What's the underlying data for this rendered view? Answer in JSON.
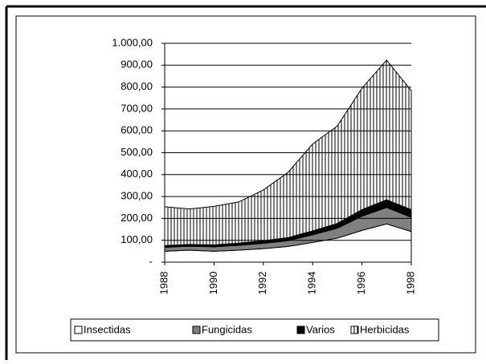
{
  "chart_data": {
    "type": "stacked_area",
    "x": [
      1988,
      1989,
      1990,
      1991,
      1992,
      1993,
      1994,
      1995,
      1996,
      1997,
      1998
    ],
    "xlim": [
      1988,
      1998
    ],
    "xticks": [
      1988,
      1990,
      1992,
      1994,
      1996,
      1998
    ],
    "ylim": [
      0,
      1000
    ],
    "yticks": [
      {
        "value": 0,
        "label": "-"
      },
      {
        "value": 100,
        "label": "100,00"
      },
      {
        "value": 200,
        "label": "200,00"
      },
      {
        "value": 300,
        "label": "300,00"
      },
      {
        "value": 400,
        "label": "400,00"
      },
      {
        "value": 500,
        "label": "500,00"
      },
      {
        "value": 600,
        "label": "600,00"
      },
      {
        "value": 700,
        "label": "700,00"
      },
      {
        "value": 800,
        "label": "800,00"
      },
      {
        "value": 900,
        "label": "900,00"
      },
      {
        "value": 1000,
        "label": "1.000,00"
      }
    ],
    "grid": true,
    "legend": "bottom",
    "series": [
      {
        "name": "Insectidas",
        "color": "#ffffff",
        "values": [
          50,
          55,
          50,
          55,
          62,
          72,
          90,
          110,
          145,
          175,
          140
        ]
      },
      {
        "name": "Fungicidas",
        "color": "#808080",
        "values": [
          18,
          18,
          20,
          22,
          24,
          26,
          35,
          45,
          65,
          75,
          65
        ]
      },
      {
        "name": "Varios",
        "color": "#000000",
        "values": [
          8,
          8,
          9,
          10,
          12,
          14,
          18,
          22,
          30,
          35,
          35
        ]
      },
      {
        "name": "Herbicidas",
        "color": "#000000",
        "pattern": "vertical-lines",
        "values": [
          177,
          162,
          176,
          188,
          232,
          298,
          397,
          445,
          555,
          638,
          544
        ]
      }
    ]
  }
}
